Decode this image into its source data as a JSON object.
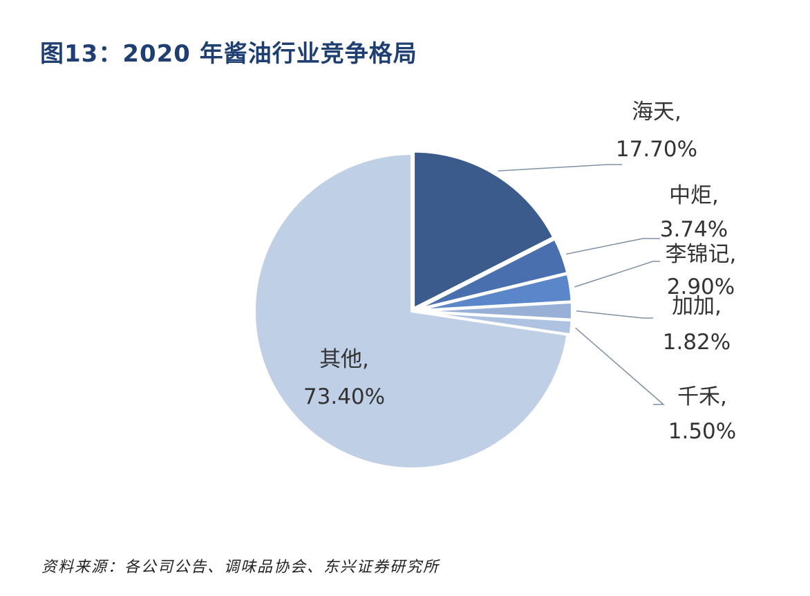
{
  "figure": {
    "title": "图13：2020 年酱油行业竞争格局",
    "source": "资料来源：各公司公告、调味品协会、东兴证券研究所"
  },
  "chart_data": {
    "type": "pie",
    "unit": "%",
    "slices": [
      {
        "name": "海天",
        "value": 17.7,
        "label": "17.70%",
        "color": "#3b5b8c"
      },
      {
        "name": "中炬",
        "value": 3.74,
        "label": "3.74%",
        "color": "#4a6fae"
      },
      {
        "name": "李锦记",
        "value": 2.9,
        "label": "2.90%",
        "color": "#5b86c9"
      },
      {
        "name": "加加",
        "value": 1.82,
        "label": "1.82%",
        "color": "#98b0d6"
      },
      {
        "name": "千禾",
        "value": 1.5,
        "label": "1.50%",
        "color": "#aec2e2"
      },
      {
        "name": "其他",
        "value": 73.4,
        "label": "73.40%",
        "color": "#bfcfe6"
      }
    ]
  }
}
